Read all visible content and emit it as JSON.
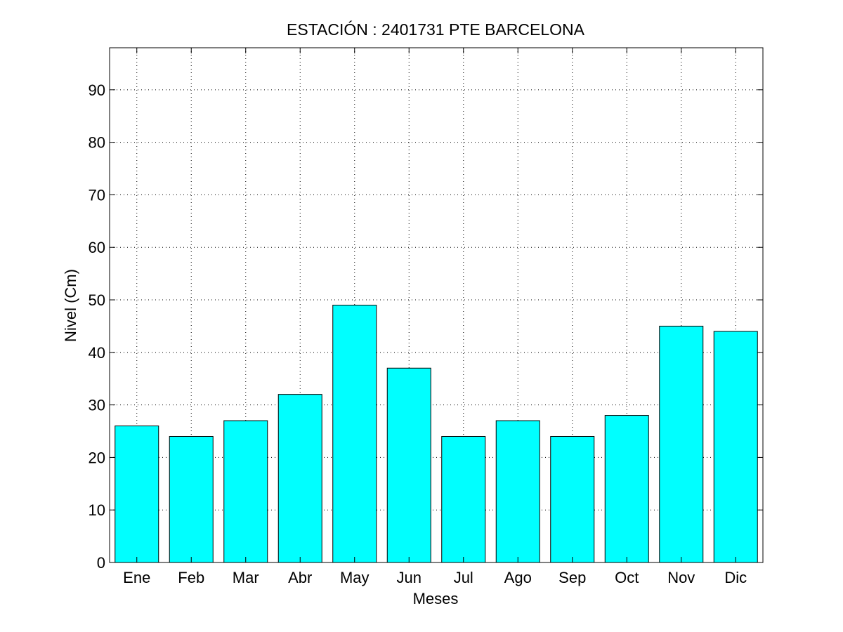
{
  "chart_data": {
    "type": "bar",
    "title": "ESTACIÓN :  2401731  PTE BARCELONA",
    "xlabel": "Meses",
    "ylabel": "Nivel (Cm)",
    "categories": [
      "Ene",
      "Feb",
      "Mar",
      "Abr",
      "May",
      "Jun",
      "Jul",
      "Ago",
      "Sep",
      "Oct",
      "Nov",
      "Dic"
    ],
    "values": [
      26,
      24,
      27,
      32,
      49,
      37,
      24,
      27,
      24,
      28,
      45,
      44
    ],
    "ylim": [
      0,
      98
    ],
    "yticks": [
      0,
      10,
      20,
      30,
      40,
      50,
      60,
      70,
      80,
      90
    ],
    "ytick_labels": [
      "0",
      "10",
      "20",
      "30",
      "40",
      "50",
      "60",
      "70",
      "80",
      "90"
    ],
    "grid": true,
    "bar_color": "#00ffff",
    "edge_color": "#000000"
  }
}
